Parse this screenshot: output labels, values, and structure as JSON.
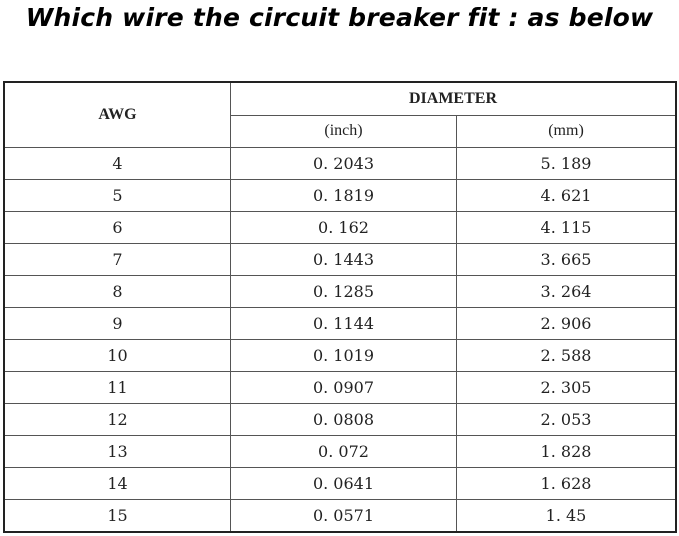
{
  "title": "Which wire the circuit breaker fit : as below",
  "table": {
    "headers": {
      "awg": "AWG",
      "diameter": "DIAMETER",
      "inch": "(inch)",
      "mm": "(mm)"
    },
    "rows": [
      {
        "awg": "4",
        "inch": "0. 2043",
        "mm": "5. 189"
      },
      {
        "awg": "5",
        "inch": "0. 1819",
        "mm": "4. 621"
      },
      {
        "awg": "6",
        "inch": "0. 162",
        "mm": "4. 115"
      },
      {
        "awg": "7",
        "inch": "0. 1443",
        "mm": "3. 665"
      },
      {
        "awg": "8",
        "inch": "0. 1285",
        "mm": "3. 264"
      },
      {
        "awg": "9",
        "inch": "0. 1144",
        "mm": "2. 906"
      },
      {
        "awg": "10",
        "inch": "0. 1019",
        "mm": "2. 588"
      },
      {
        "awg": "11",
        "inch": "0. 0907",
        "mm": "2. 305"
      },
      {
        "awg": "12",
        "inch": "0. 0808",
        "mm": "2. 053"
      },
      {
        "awg": "13",
        "inch": "0. 072",
        "mm": "1. 828"
      },
      {
        "awg": "14",
        "inch": "0. 0641",
        "mm": "1. 628"
      },
      {
        "awg": "15",
        "inch": "0. 0571",
        "mm": "1. 45"
      }
    ]
  }
}
